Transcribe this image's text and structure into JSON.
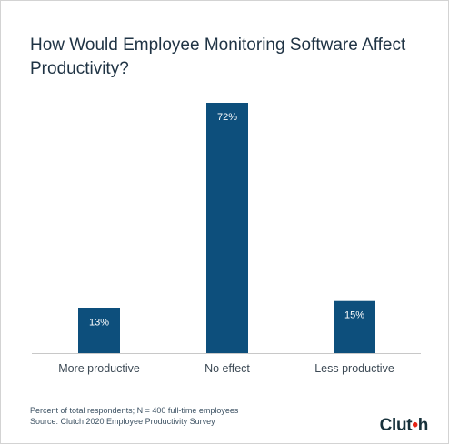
{
  "chart_data": {
    "type": "bar",
    "title": "How Would Employee Monitoring Software Affect Productivity?",
    "categories": [
      "More productive",
      "No effect",
      "Less productive"
    ],
    "values": [
      13,
      72,
      15
    ],
    "value_labels": [
      "13%",
      "72%",
      "15%"
    ],
    "unit": "%",
    "ylim": [
      0,
      72
    ],
    "grid": false,
    "legend": "none",
    "bar_color": "#0d4f7c"
  },
  "footer": {
    "note": "Percent of total respondents; N = 400 full-time employees",
    "source": "Source: Clutch 2020 Employee Productivity Survey"
  },
  "logo": {
    "text_main": "Clut",
    "text_accent": "•",
    "text_end": "h"
  },
  "colors": {
    "title": "#1f3344",
    "bar": "#0d4f7c",
    "baseline": "#c8c8c8",
    "accent": "#e62415"
  }
}
